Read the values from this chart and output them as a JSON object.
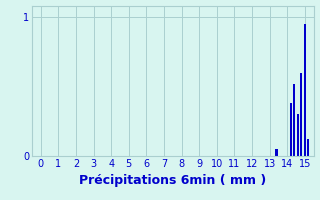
{
  "xlabel": "Précipitations 6min ( mm )",
  "background_color": "#d8f5f0",
  "bar_color": "#0000cc",
  "xlim": [
    -0.5,
    15.5
  ],
  "ylim": [
    0,
    1.08
  ],
  "yticks": [
    0,
    1
  ],
  "ytick_labels": [
    "0",
    "1"
  ],
  "xticks": [
    0,
    1,
    2,
    3,
    4,
    5,
    6,
    7,
    8,
    9,
    10,
    11,
    12,
    13,
    14,
    15
  ],
  "grid_color": "#aacfcf",
  "bar_positions": [
    13.4,
    14.2,
    14.4,
    14.6,
    14.8,
    15.0,
    15.2
  ],
  "bar_values": [
    0.05,
    0.38,
    0.52,
    0.3,
    0.6,
    0.95,
    0.12
  ],
  "bar_width": 0.13,
  "tick_color": "#0000cc",
  "label_color": "#0000cc",
  "tick_fontsize": 7,
  "xlabel_fontsize": 9
}
